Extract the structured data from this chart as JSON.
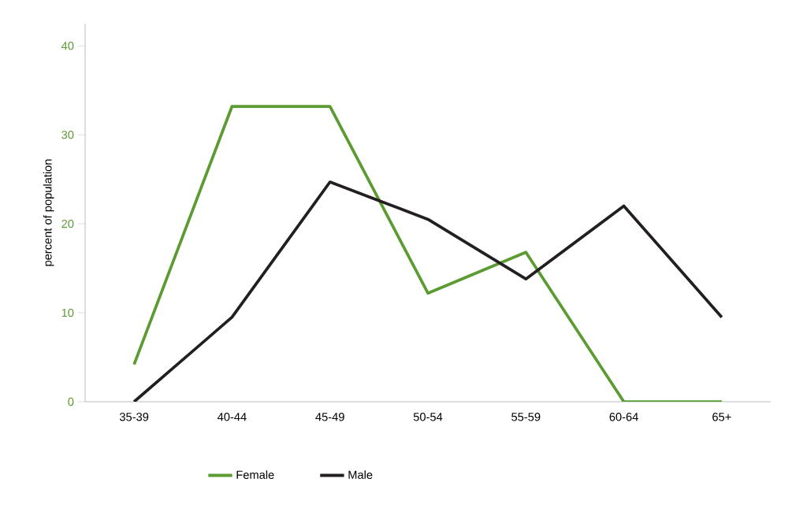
{
  "chart_data": {
    "type": "line",
    "ylabel": "percent of population",
    "categories": [
      "35-39",
      "40-44",
      "45-49",
      "50-54",
      "55-59",
      "60-64",
      "65+"
    ],
    "series": [
      {
        "name": "Female",
        "color": "#5b9b32",
        "values": [
          4.2,
          33.2,
          33.2,
          12.2,
          16.8,
          0,
          0
        ]
      },
      {
        "name": "Male",
        "color": "#231f20",
        "values": [
          0,
          9.5,
          24.7,
          20.5,
          13.8,
          22.0,
          9.5
        ]
      }
    ],
    "ylim": [
      0,
      42.5
    ],
    "yticks": [
      0,
      10,
      20,
      30,
      40
    ],
    "grid": false,
    "legend": "bottom",
    "marker": "none",
    "line_style": "solid"
  }
}
